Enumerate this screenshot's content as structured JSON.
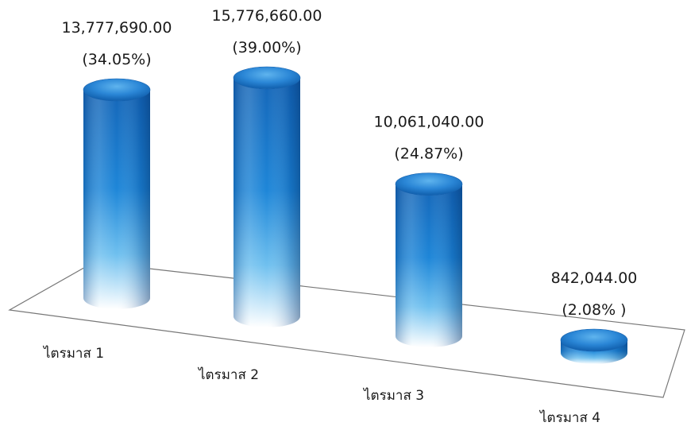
{
  "chart_data": {
    "type": "bar",
    "style": "3d-cylinder",
    "categories": [
      "ไตรมาส 1",
      "ไตรมาส 2",
      "ไตรมาส 3",
      "ไตรมาส 4"
    ],
    "values": [
      13777690.0,
      15776660.0,
      10061040.0,
      842044.0
    ],
    "value_labels": [
      "13,777,690.00",
      "15,776,660.00",
      "10,061,040.00",
      "842,044.00"
    ],
    "percent_labels": [
      "(34.05%)",
      "(39.00%)",
      "(24.87%)",
      "(2.08% )"
    ],
    "title": "",
    "xlabel": "",
    "ylabel": "",
    "grid": false,
    "legend": "none",
    "colors": {
      "bar_top": "#1a6fc2",
      "bar_mid": "#2e8fe0",
      "bar_bottom": "#ffffff",
      "floor_line": "#777777"
    }
  }
}
